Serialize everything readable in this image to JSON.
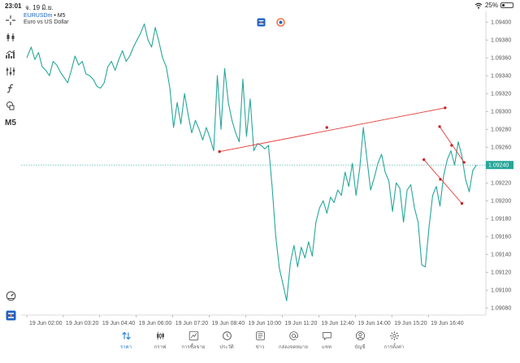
{
  "status": {
    "time": "23:01",
    "date": "จ. 19 มิ.ย.",
    "battery": "25%",
    "battery_level": 0.25
  },
  "symbol": {
    "name": "EURUSDm",
    "separator": "•",
    "timeframe": "M5",
    "description": "Euro vs US Dollar"
  },
  "toolbar": {
    "timeframe_label": "M5"
  },
  "chart_data": {
    "type": "line",
    "title": "",
    "current_price_label": "1.09240",
    "x_ticks": [
      "19 Jun 02:00",
      "19 Jun 03:20",
      "19 Jun 04:40",
      "19 Jun 06:00",
      "19 Jun 07:20",
      "19 Jun 08:40",
      "19 Jun 10:00",
      "19 Jun 11:20",
      "19 Jun 12:40",
      "19 Jun 14:00",
      "19 Jun 15:20",
      "19 Jun 16:40"
    ],
    "y_ticks": [
      "1.09400",
      "1.09380",
      "1.09360",
      "1.09340",
      "1.09320",
      "1.09300",
      "1.09280",
      "1.09260",
      "1.09240",
      "1.09220",
      "1.09200",
      "1.09180",
      "1.09160",
      "1.09140",
      "1.09120",
      "1.09100",
      "1.09080"
    ],
    "ylim": [
      1.09072,
      1.09412
    ],
    "xlim": [
      0,
      12.8
    ],
    "current_price": 1.0924,
    "series": [
      {
        "color": "#26a69a",
        "values": [
          [
            0.0,
            1.0936
          ],
          [
            0.12,
            1.09372
          ],
          [
            0.22,
            1.09358
          ],
          [
            0.32,
            1.09366
          ],
          [
            0.42,
            1.0935
          ],
          [
            0.52,
            1.09346
          ],
          [
            0.62,
            1.0934
          ],
          [
            0.72,
            1.09356
          ],
          [
            0.82,
            1.09352
          ],
          [
            0.92,
            1.09344
          ],
          [
            1.02,
            1.09338
          ],
          [
            1.12,
            1.09332
          ],
          [
            1.22,
            1.09346
          ],
          [
            1.32,
            1.09362
          ],
          [
            1.42,
            1.09352
          ],
          [
            1.52,
            1.09356
          ],
          [
            1.62,
            1.09342
          ],
          [
            1.72,
            1.0934
          ],
          [
            1.82,
            1.09336
          ],
          [
            1.92,
            1.09328
          ],
          [
            2.02,
            1.09326
          ],
          [
            2.12,
            1.09332
          ],
          [
            2.22,
            1.0935
          ],
          [
            2.32,
            1.09356
          ],
          [
            2.42,
            1.09346
          ],
          [
            2.52,
            1.09358
          ],
          [
            2.62,
            1.09368
          ],
          [
            2.72,
            1.09356
          ],
          [
            2.82,
            1.09362
          ],
          [
            2.92,
            1.09372
          ],
          [
            3.02,
            1.0938
          ],
          [
            3.12,
            1.09388
          ],
          [
            3.22,
            1.09398
          ],
          [
            3.32,
            1.0938
          ],
          [
            3.42,
            1.09372
          ],
          [
            3.52,
            1.09394
          ],
          [
            3.62,
            1.09378
          ],
          [
            3.72,
            1.0936
          ],
          [
            3.82,
            1.0935
          ],
          [
            3.92,
            1.09326
          ],
          [
            4.02,
            1.09282
          ],
          [
            4.12,
            1.0931
          ],
          [
            4.22,
            1.09286
          ],
          [
            4.32,
            1.0932
          ],
          [
            4.42,
            1.09296
          ],
          [
            4.52,
            1.09276
          ],
          [
            4.62,
            1.0929
          ],
          [
            4.72,
            1.0928
          ],
          [
            4.82,
            1.09268
          ],
          [
            4.92,
            1.09282
          ],
          [
            5.02,
            1.0927
          ],
          [
            5.12,
            1.09256
          ],
          [
            5.22,
            1.0934
          ],
          [
            5.32,
            1.0928
          ],
          [
            5.42,
            1.09348
          ],
          [
            5.52,
            1.0931
          ],
          [
            5.62,
            1.0929
          ],
          [
            5.72,
            1.09276
          ],
          [
            5.82,
            1.09266
          ],
          [
            5.92,
            1.09336
          ],
          [
            6.02,
            1.09272
          ],
          [
            6.12,
            1.09314
          ],
          [
            6.22,
            1.09256
          ],
          [
            6.32,
            1.09264
          ],
          [
            6.42,
            1.09262
          ],
          [
            6.52,
            1.09258
          ],
          [
            6.62,
            1.09262
          ],
          [
            6.72,
            1.09216
          ],
          [
            6.82,
            1.0916
          ],
          [
            6.92,
            1.09124
          ],
          [
            7.02,
            1.09106
          ],
          [
            7.12,
            1.09088
          ],
          [
            7.22,
            1.0913
          ],
          [
            7.32,
            1.0915
          ],
          [
            7.42,
            1.09126
          ],
          [
            7.52,
            1.09148
          ],
          [
            7.62,
            1.09136
          ],
          [
            7.72,
            1.09154
          ],
          [
            7.82,
            1.09138
          ],
          [
            7.92,
            1.09176
          ],
          [
            8.02,
            1.09192
          ],
          [
            8.12,
            1.092
          ],
          [
            8.22,
            1.09186
          ],
          [
            8.32,
            1.09204
          ],
          [
            8.42,
            1.09198
          ],
          [
            8.52,
            1.09212
          ],
          [
            8.62,
            1.09206
          ],
          [
            8.72,
            1.09232
          ],
          [
            8.82,
            1.09216
          ],
          [
            8.92,
            1.09242
          ],
          [
            9.02,
            1.09206
          ],
          [
            9.12,
            1.09236
          ],
          [
            9.22,
            1.09282
          ],
          [
            9.32,
            1.09246
          ],
          [
            9.42,
            1.09212
          ],
          [
            9.52,
            1.09226
          ],
          [
            9.62,
            1.09242
          ],
          [
            9.72,
            1.09252
          ],
          [
            9.82,
            1.09232
          ],
          [
            9.92,
            1.09222
          ],
          [
            10.02,
            1.09188
          ],
          [
            10.12,
            1.0922
          ],
          [
            10.22,
            1.09214
          ],
          [
            10.32,
            1.09176
          ],
          [
            10.42,
            1.09212
          ],
          [
            10.52,
            1.09218
          ],
          [
            10.62,
            1.09192
          ],
          [
            10.72,
            1.09176
          ],
          [
            10.82,
            1.09128
          ],
          [
            10.92,
            1.09126
          ],
          [
            11.02,
            1.0917
          ],
          [
            11.12,
            1.09206
          ],
          [
            11.22,
            1.09216
          ],
          [
            11.32,
            1.09194
          ],
          [
            11.42,
            1.09228
          ],
          [
            11.52,
            1.09246
          ],
          [
            11.62,
            1.09256
          ],
          [
            11.72,
            1.0924
          ],
          [
            11.82,
            1.09266
          ],
          [
            11.92,
            1.0925
          ],
          [
            12.02,
            1.09224
          ],
          [
            12.12,
            1.0921
          ],
          [
            12.22,
            1.09234
          ],
          [
            12.32,
            1.0924
          ]
        ]
      }
    ],
    "trendlines": [
      {
        "color": "#e53935",
        "points": [
          [
            5.28,
            1.09255
          ],
          [
            8.22,
            1.09282
          ],
          [
            11.46,
            1.09304
          ]
        ]
      },
      {
        "color": "#e53935",
        "points": [
          [
            11.31,
            1.09283
          ],
          [
            11.64,
            1.09262
          ],
          [
            11.98,
            1.09243
          ]
        ]
      },
      {
        "color": "#e53935",
        "points": [
          [
            10.88,
            1.09246
          ],
          [
            11.33,
            1.09224
          ],
          [
            11.92,
            1.09197
          ]
        ]
      }
    ]
  },
  "bottom_nav": {
    "items": [
      {
        "label": "ราคา",
        "icon": "quotes-icon",
        "active": true
      },
      {
        "label": "กราฟ",
        "icon": "chart-icon",
        "active": false
      },
      {
        "label": "การซื้อขาย",
        "icon": "trade-icon",
        "active": false
      },
      {
        "label": "ประวัติ",
        "icon": "history-icon",
        "active": false
      },
      {
        "label": "ข่าว",
        "icon": "news-icon",
        "active": false
      },
      {
        "label": "กล่องจดหมาย",
        "icon": "mailbox-icon",
        "active": false
      },
      {
        "label": "แชท",
        "icon": "chat-icon",
        "active": false
      },
      {
        "label": "บัญชี",
        "icon": "account-icon",
        "active": false
      },
      {
        "label": "การตั้งค่า",
        "icon": "settings-icon",
        "active": false
      }
    ],
    "accent_color": "#1976d2"
  }
}
